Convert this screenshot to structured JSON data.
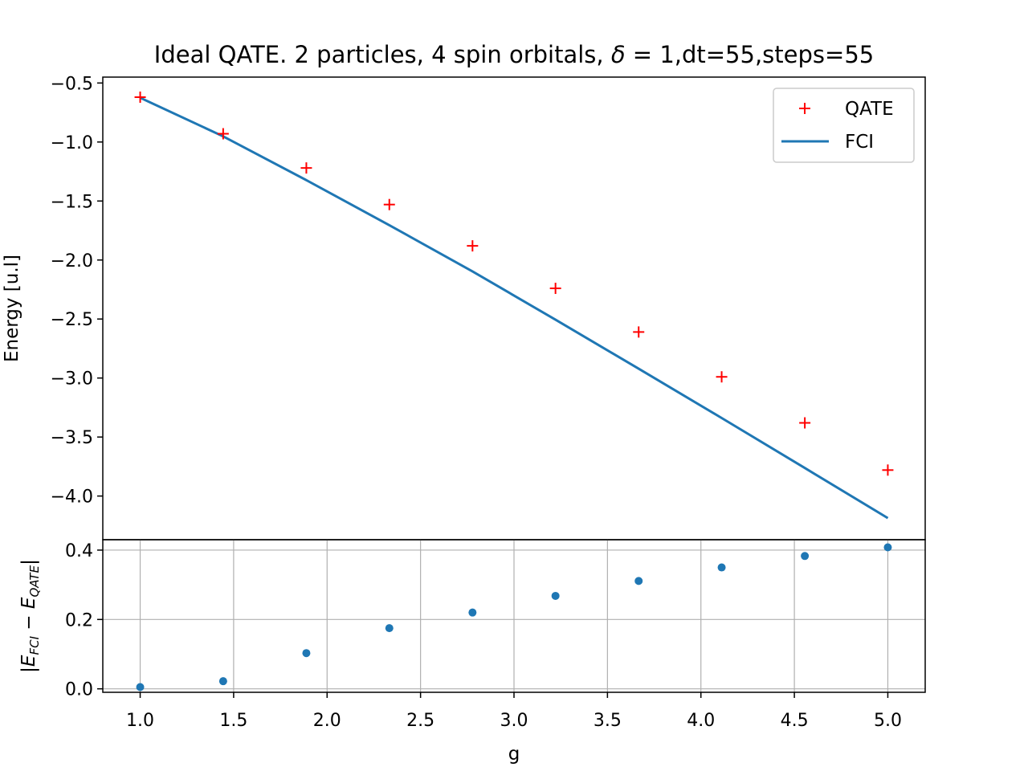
{
  "chart_data": [
    {
      "panel": "main",
      "type": "line",
      "title": "Ideal QATE. 2 particles, 4 spin orbitals, δ = 1,dt=55,steps=55",
      "title_parts": {
        "prefix": "Ideal QATE. 2 particles, 4 spin orbitals, ",
        "symbol": "δ",
        "suffix": " = 1,dt=55,steps=55"
      },
      "ylabel": "Energy [u.l]",
      "xlabel": "",
      "xlim": [
        0.8,
        5.2
      ],
      "ylim": [
        -4.37,
        -0.45
      ],
      "yticks": [
        "−0.5",
        "−1.0",
        "−1.5",
        "−2.0",
        "−2.5",
        "−3.0",
        "−3.5",
        "−4.0"
      ],
      "ytick_values": [
        -0.5,
        -1.0,
        -1.5,
        -2.0,
        -2.5,
        -3.0,
        -3.5,
        -4.0
      ],
      "grid": false,
      "legend_position": "top-right",
      "x": [
        1.0,
        1.444,
        1.889,
        2.333,
        2.778,
        3.222,
        3.667,
        4.111,
        4.556,
        5.0
      ],
      "series": [
        {
          "name": "QATE",
          "marker": "+",
          "color": "#ff0000",
          "values": [
            -0.62,
            -0.93,
            -1.22,
            -1.53,
            -1.88,
            -2.24,
            -2.61,
            -2.99,
            -3.38,
            -3.78
          ]
        },
        {
          "name": "FCI",
          "marker": "line",
          "color": "#1f77b4",
          "values": [
            -0.625,
            -0.952,
            -1.323,
            -1.705,
            -2.096,
            -2.506,
            -2.921,
            -3.339,
            -3.762,
            -4.187
          ]
        }
      ]
    },
    {
      "panel": "difference",
      "type": "scatter",
      "ylabel_parts": {
        "open": "|",
        "e1": "E",
        "s1": "FCI",
        "minus": " − ",
        "e2": "E",
        "s2": "QATE",
        "close": "|"
      },
      "xlabel": "g",
      "xlim": [
        0.8,
        5.2
      ],
      "ylim": [
        -0.01,
        0.43
      ],
      "xticks": [
        "1.0",
        "1.5",
        "2.0",
        "2.5",
        "3.0",
        "3.5",
        "4.0",
        "4.5",
        "5.0"
      ],
      "xtick_values": [
        1.0,
        1.5,
        2.0,
        2.5,
        3.0,
        3.5,
        4.0,
        4.5,
        5.0
      ],
      "yticks": [
        "0.0",
        "0.2",
        "0.4"
      ],
      "ytick_values": [
        0.0,
        0.2,
        0.4
      ],
      "grid": true,
      "color": "#1f77b4",
      "x": [
        1.0,
        1.444,
        1.889,
        2.333,
        2.778,
        3.222,
        3.667,
        4.111,
        4.556,
        5.0
      ],
      "values": [
        0.005,
        0.022,
        0.103,
        0.175,
        0.22,
        0.268,
        0.311,
        0.35,
        0.383,
        0.408
      ]
    }
  ]
}
